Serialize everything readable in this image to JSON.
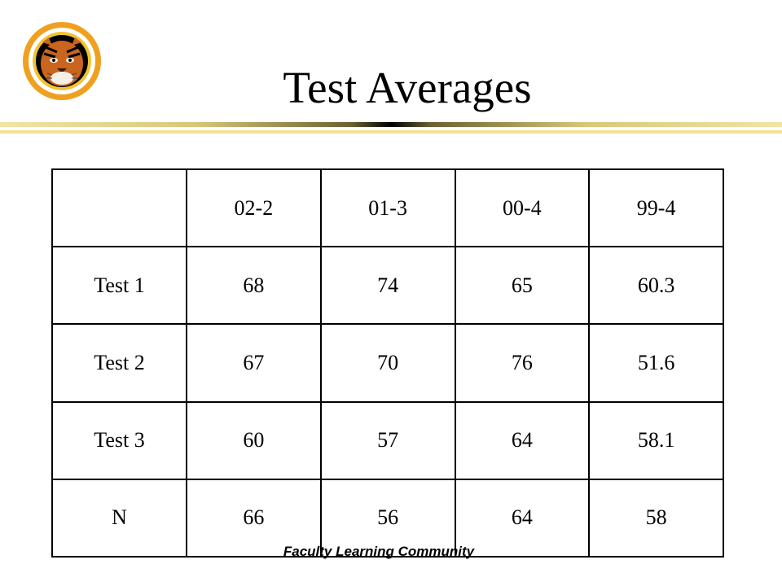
{
  "slide": {
    "title": "Test Averages",
    "footer": "Faculty Learning Community"
  },
  "logo": {
    "icon": "tiger-head-icon",
    "ring_color": "#f0a020"
  },
  "table": {
    "columns": [
      "",
      "02-2",
      "01-3",
      "00-4",
      "99-4"
    ],
    "rows": [
      {
        "label": "Test 1",
        "values": [
          "68",
          "74",
          "65",
          "60.3"
        ]
      },
      {
        "label": "Test 2",
        "values": [
          "67",
          "70",
          "76",
          "51.6"
        ]
      },
      {
        "label": "Test 3",
        "values": [
          "60",
          "57",
          "64",
          "58.1"
        ]
      },
      {
        "label": "N",
        "values": [
          "66",
          "56",
          "64",
          "58"
        ]
      }
    ]
  }
}
